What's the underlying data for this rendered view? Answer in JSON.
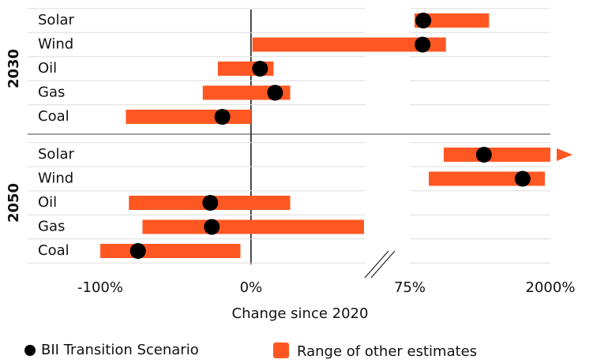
{
  "chart_data": {
    "type": "range-dot",
    "xlabel": "Change since 2020",
    "xlim": [
      -100,
      2000
    ],
    "xbreak": 75,
    "xticks": [
      {
        "value": -100,
        "label": "-100%"
      },
      {
        "value": 0,
        "label": "0%"
      },
      {
        "value": 75,
        "label": "75%"
      },
      {
        "value": 2000,
        "label": "2000%"
      }
    ],
    "legend": [
      {
        "name": "BII Transition Scenario",
        "color": "#000000"
      },
      {
        "name": "Range of other estimates",
        "color": "#ff5722"
      }
    ],
    "groups": [
      {
        "label": "2030",
        "categories": [
          "Solar",
          "Wind",
          "Oil",
          "Gas",
          "Coal"
        ],
        "low": [
          140,
          1,
          -22,
          -32,
          -83
        ],
        "high": [
          1160,
          570,
          15,
          26,
          0
        ],
        "dots": [
          260,
          250,
          6,
          16,
          -19
        ]
      },
      {
        "label": "2050",
        "categories": [
          "Solar",
          "Wind",
          "Oil",
          "Gas",
          "Coal"
        ],
        "low": [
          540,
          335,
          -81,
          -72,
          -100
        ],
        "high": [
          2000,
          1925,
          26,
          75,
          -7
        ],
        "dots": [
          1090,
          1620,
          -27,
          -26,
          -75
        ]
      }
    ]
  }
}
